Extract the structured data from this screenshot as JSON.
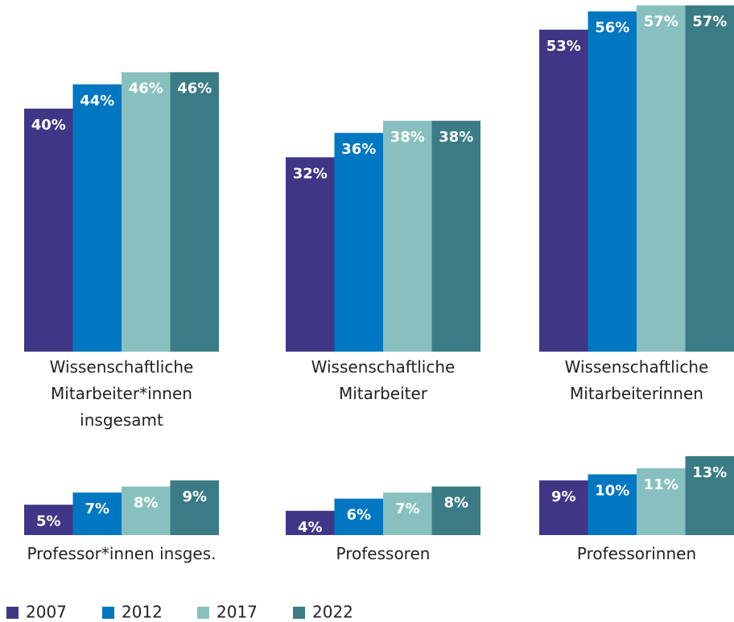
{
  "chart_data": {
    "type": "bar",
    "categories": [
      "Wissenschaftliche Mitarbeiter*innen insgesamt",
      "Wissenschaftliche Mitarbeiter",
      "Wissenschaftliche Mitarbeiterinnen",
      "Professor*innen insges.",
      "Professoren",
      "Professorinnen"
    ],
    "series": [
      {
        "name": "2007",
        "color": "#3f3785",
        "values": [
          40,
          32,
          53,
          5,
          4,
          9
        ],
        "value_labels": [
          "40%",
          "32%",
          "53%",
          "5%",
          "4%",
          "9%"
        ]
      },
      {
        "name": "2012",
        "color": "#0077c0",
        "values": [
          44,
          36,
          56,
          7,
          6,
          10
        ],
        "value_labels": [
          "44%",
          "36%",
          "56%",
          "7%",
          "6%",
          "10%"
        ]
      },
      {
        "name": "2017",
        "color": "#88c0c0",
        "values": [
          46,
          38,
          57,
          8,
          7,
          11
        ],
        "value_labels": [
          "46%",
          "38%",
          "57%",
          "8%",
          "7%",
          "11%"
        ]
      },
      {
        "name": "2022",
        "color": "#3a7b85",
        "values": [
          46,
          38,
          57,
          9,
          8,
          13
        ],
        "value_labels": [
          "46%",
          "38%",
          "57%",
          "9%",
          "8%",
          "13%"
        ]
      }
    ]
  }
}
